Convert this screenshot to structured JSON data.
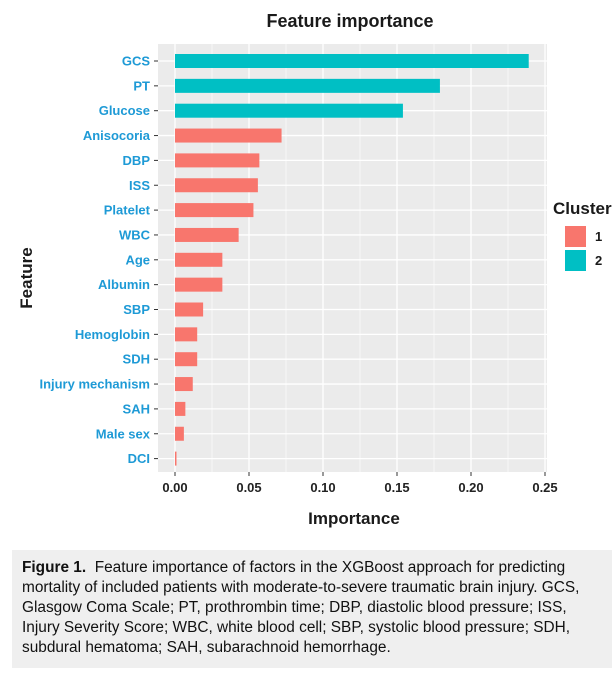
{
  "chart_data": {
    "type": "bar",
    "orientation": "horizontal",
    "title": "Feature importance",
    "xlabel": "Importance",
    "ylabel": "Feature",
    "xlim": [
      0,
      0.25
    ],
    "xticks": [
      "0.00",
      "0.05",
      "0.10",
      "0.15",
      "0.20",
      "0.25"
    ],
    "grid": true,
    "legend": {
      "title": "Cluster",
      "position": "right",
      "entries": [
        {
          "label": "1",
          "color": "#f8766d"
        },
        {
          "label": "2",
          "color": "#00bfc4"
        }
      ]
    },
    "categories": [
      "GCS",
      "PT",
      "Glucose",
      "Anisocoria",
      "DBP",
      "ISS",
      "Platelet",
      "WBC",
      "Age",
      "Albumin",
      "SBP",
      "Hemoglobin",
      "SDH",
      "Injury mechanism",
      "SAH",
      "Male sex",
      "DCI"
    ],
    "values": [
      0.239,
      0.179,
      0.154,
      0.072,
      0.057,
      0.056,
      0.053,
      0.043,
      0.032,
      0.032,
      0.019,
      0.015,
      0.015,
      0.012,
      0.007,
      0.006,
      0.001
    ],
    "clusters": [
      "2",
      "2",
      "2",
      "1",
      "1",
      "1",
      "1",
      "1",
      "1",
      "1",
      "1",
      "1",
      "1",
      "1",
      "1",
      "1",
      "1"
    ]
  },
  "caption": {
    "label": "Figure 1.",
    "text": "Feature importance of factors in the XGBoost approach for predicting mortality of included patients with moderate-to-severe traumatic brain injury. GCS, Glasgow Coma Scale; PT, prothrombin time; DBP, diastolic blood pressure; ISS, Injury Severity Score; WBC, white blood cell; SBP, systolic blood pressure; SDH, subdural hematoma; SAH, subarachnoid hemorrhage."
  },
  "colors": {
    "panel_background": "#ebebeb",
    "gridline": "#ffffff",
    "tick_label": "#1e9ad6"
  }
}
